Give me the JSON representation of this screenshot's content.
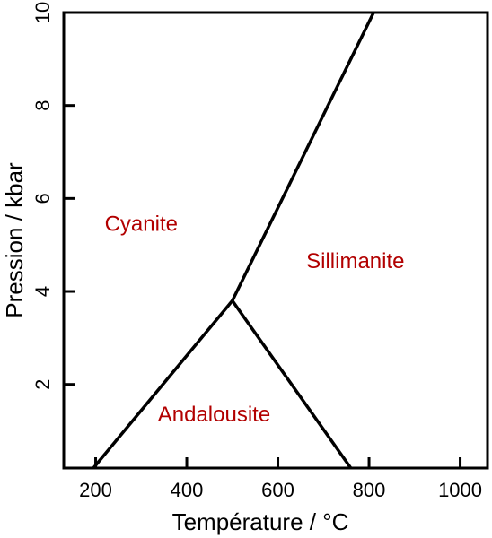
{
  "chart_data": {
    "type": "line",
    "title": "",
    "xlabel": "Température / °C",
    "ylabel": "Pression / kbar",
    "xlim": [
      130,
      1060
    ],
    "ylim": [
      0.2,
      10
    ],
    "x_ticks": [
      200,
      400,
      600,
      800,
      1000
    ],
    "y_ticks": [
      2,
      4,
      6,
      8,
      10
    ],
    "grid": false,
    "series": [
      {
        "values": [
          [
            195,
            0.2
          ],
          [
            500,
            3.8
          ]
        ]
      },
      {
        "values": [
          [
            500,
            3.8
          ],
          [
            760,
            0.2
          ]
        ]
      },
      {
        "values": [
          [
            500,
            3.8
          ],
          [
            810,
            10
          ]
        ]
      }
    ],
    "annotations": [
      {
        "text": "Cyanite",
        "x": 300,
        "y": 5.3
      },
      {
        "text": "Sillimanite",
        "x": 770,
        "y": 4.5
      },
      {
        "text": "Andalousite",
        "x": 460,
        "y": 1.2
      }
    ],
    "colors": {
      "lines": "#000000",
      "annotation": "#b20000"
    }
  }
}
